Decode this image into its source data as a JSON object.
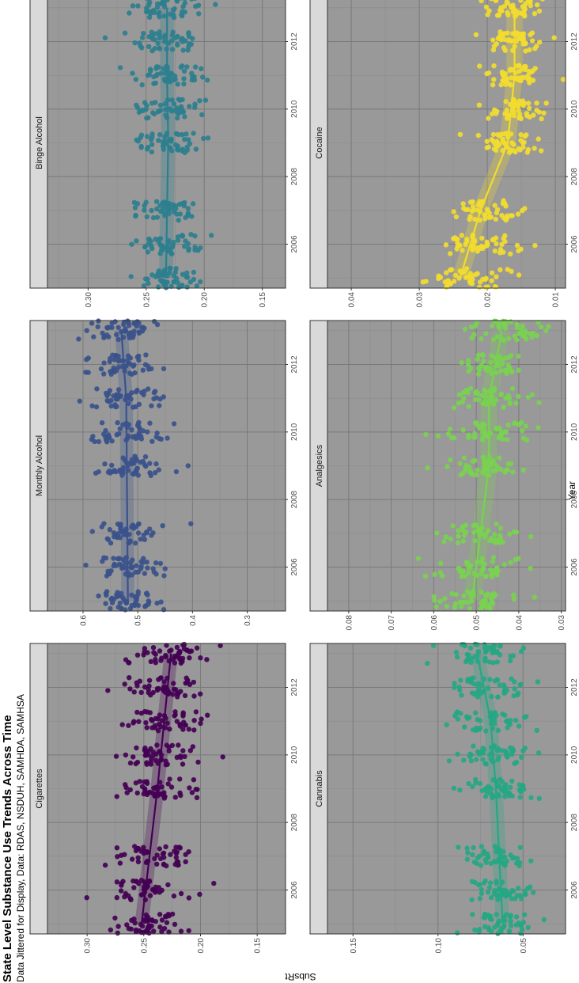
{
  "title": "State Level Substance Use Trends Across Time",
  "subtitle": "Data Jittered for Display, Data: RDAS, NSDUH, SAMHDA, SAMHSA",
  "xlabel": "Year",
  "ylabel": "SubsRt",
  "chart_data": [
    {
      "type": "scatter",
      "name": "Cigarettes",
      "color": "#440154",
      "x_range": [
        2004.7,
        2013.3
      ],
      "ylim": [
        0.125,
        0.335
      ],
      "y_ticks": [
        0.15,
        0.2,
        0.25,
        0.3
      ],
      "y_tick_labels": [
        "0.15",
        "0.20",
        "0.25",
        "0.30"
      ],
      "x_ticks": [
        2006,
        2008,
        2010,
        2012
      ],
      "years": [
        2005,
        2006,
        2007,
        2009,
        2010,
        2011,
        2012,
        2013
      ],
      "y_center": [
        0.249,
        0.246,
        0.244,
        0.238,
        0.236,
        0.233,
        0.231,
        0.228
      ],
      "y_spread": [
        0.028,
        0.03,
        0.03,
        0.03,
        0.03,
        0.031,
        0.031,
        0.03
      ],
      "trend": [
        [
          2005,
          0.252
        ],
        [
          2007,
          0.245
        ],
        [
          2009,
          0.238
        ],
        [
          2011,
          0.232
        ],
        [
          2013,
          0.226
        ]
      ],
      "band": 0.006
    },
    {
      "type": "scatter",
      "name": "Monthly Alcohol",
      "color": "#3b528b",
      "x_range": [
        2004.7,
        2013.3
      ],
      "ylim": [
        0.23,
        0.665
      ],
      "y_ticks": [
        0.3,
        0.4,
        0.5,
        0.6
      ],
      "y_tick_labels": [
        "0.3",
        "0.4",
        "0.5",
        "0.6"
      ],
      "x_ticks": [
        2006,
        2008,
        2010,
        2012
      ],
      "years": [
        2005,
        2006,
        2007,
        2009,
        2010,
        2011,
        2012,
        2013
      ],
      "y_center": [
        0.518,
        0.519,
        0.52,
        0.52,
        0.522,
        0.522,
        0.524,
        0.53
      ],
      "y_spread": [
        0.06,
        0.058,
        0.06,
        0.062,
        0.062,
        0.062,
        0.062,
        0.06
      ],
      "trend": [
        [
          2005,
          0.518
        ],
        [
          2007,
          0.519
        ],
        [
          2009,
          0.52
        ],
        [
          2011,
          0.521
        ],
        [
          2013,
          0.53
        ]
      ],
      "band": 0.012
    },
    {
      "type": "scatter",
      "name": "Binge Alcohol",
      "color": "#2c7f8e",
      "x_range": [
        2004.7,
        2013.3
      ],
      "ylim": [
        0.13,
        0.335
      ],
      "y_ticks": [
        0.15,
        0.2,
        0.25,
        0.3
      ],
      "y_tick_labels": [
        "0.15",
        "0.20",
        "0.25",
        "0.30"
      ],
      "x_ticks": [
        2006,
        2008,
        2010,
        2012
      ],
      "years": [
        2005,
        2006,
        2007,
        2009,
        2010,
        2011,
        2012,
        2013
      ],
      "y_center": [
        0.233,
        0.23,
        0.23,
        0.232,
        0.231,
        0.232,
        0.232,
        0.232
      ],
      "y_spread": [
        0.026,
        0.028,
        0.028,
        0.028,
        0.028,
        0.028,
        0.028,
        0.028
      ],
      "trend": [
        [
          2005,
          0.233
        ],
        [
          2007,
          0.232
        ],
        [
          2009,
          0.231
        ],
        [
          2011,
          0.232
        ],
        [
          2013,
          0.232
        ]
      ],
      "band": 0.006
    },
    {
      "type": "scatter",
      "name": "Cannabis",
      "color": "#26a784",
      "x_range": [
        2004.7,
        2013.3
      ],
      "ylim": [
        0.025,
        0.165
      ],
      "y_ticks": [
        0.05,
        0.1,
        0.15
      ],
      "y_tick_labels": [
        "0.05",
        "0.10",
        "0.15"
      ],
      "x_ticks": [
        2006,
        2008,
        2010,
        2012
      ],
      "years": [
        2005,
        2006,
        2007,
        2009,
        2010,
        2011,
        2012,
        2013
      ],
      "y_center": [
        0.063,
        0.064,
        0.065,
        0.067,
        0.068,
        0.07,
        0.073,
        0.076
      ],
      "y_spread": [
        0.018,
        0.018,
        0.019,
        0.02,
        0.021,
        0.022,
        0.024,
        0.026
      ],
      "trend": [
        [
          2005,
          0.062
        ],
        [
          2007,
          0.064
        ],
        [
          2009,
          0.066
        ],
        [
          2011,
          0.069
        ],
        [
          2013,
          0.077
        ]
      ],
      "band": 0.004
    },
    {
      "type": "scatter",
      "name": "Analgesics",
      "color": "#7ad151",
      "x_range": [
        2004.7,
        2013.3
      ],
      "ylim": [
        0.029,
        0.085
      ],
      "y_ticks": [
        0.03,
        0.04,
        0.05,
        0.06,
        0.07,
        0.08
      ],
      "y_tick_labels": [
        "0.03",
        "0.04",
        "0.05",
        "0.06",
        "0.07",
        "0.08"
      ],
      "x_ticks": [
        2006,
        2008,
        2010,
        2012
      ],
      "years": [
        2005,
        2006,
        2007,
        2009,
        2010,
        2011,
        2012,
        2013
      ],
      "y_center": [
        0.051,
        0.05,
        0.049,
        0.047,
        0.047,
        0.047,
        0.046,
        0.043
      ],
      "y_spread": [
        0.008,
        0.008,
        0.008,
        0.008,
        0.008,
        0.008,
        0.008,
        0.008
      ],
      "trend": [
        [
          2005,
          0.051
        ],
        [
          2007,
          0.049
        ],
        [
          2009,
          0.047
        ],
        [
          2011,
          0.047
        ],
        [
          2013,
          0.044
        ]
      ],
      "band": 0.002
    },
    {
      "type": "scatter",
      "name": "Cocaine",
      "color": "#f2dc2f",
      "x_range": [
        2004.7,
        2013.3
      ],
      "ylim": [
        0.0085,
        0.0435
      ],
      "y_ticks": [
        0.01,
        0.02,
        0.03,
        0.04
      ],
      "y_tick_labels": [
        "0.01",
        "0.02",
        "0.03",
        "0.04"
      ],
      "x_ticks": [
        2006,
        2008,
        2010,
        2012
      ],
      "years": [
        2005,
        2006,
        2007,
        2009,
        2010,
        2011,
        2012,
        2013
      ],
      "y_center": [
        0.023,
        0.021,
        0.02,
        0.017,
        0.016,
        0.016,
        0.016,
        0.016
      ],
      "y_spread": [
        0.005,
        0.005,
        0.005,
        0.004,
        0.004,
        0.004,
        0.004,
        0.004
      ],
      "trend": [
        [
          2005,
          0.024
        ],
        [
          2007,
          0.021
        ],
        [
          2009,
          0.017
        ],
        [
          2011,
          0.016
        ],
        [
          2013,
          0.016
        ]
      ],
      "band": 0.0012
    }
  ]
}
